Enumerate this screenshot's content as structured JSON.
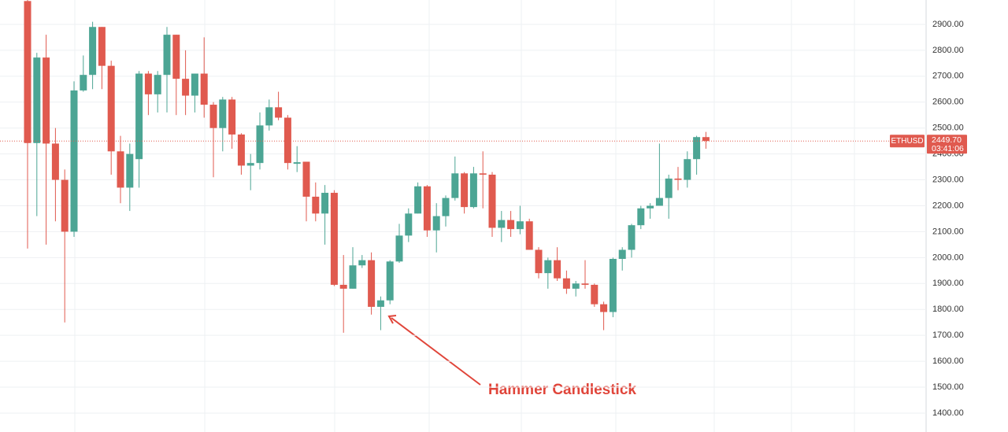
{
  "chart_data": {
    "type": "candlestick",
    "symbol": "ETHUSD",
    "up_color": "#4ca594",
    "down_color": "#e05a4f",
    "ylim": [
      1327,
      2994
    ],
    "yticks": [
      {
        "value": 1400,
        "label": "1400.00"
      },
      {
        "value": 1500,
        "label": "1500.00"
      },
      {
        "value": 1600,
        "label": "1600.00"
      },
      {
        "value": 1700,
        "label": "1700.00"
      },
      {
        "value": 1800,
        "label": "1800.00"
      },
      {
        "value": 1900,
        "label": "1900.00"
      },
      {
        "value": 2000,
        "label": "2000.00"
      },
      {
        "value": 2100,
        "label": "2100.00"
      },
      {
        "value": 2200,
        "label": "2200.00"
      },
      {
        "value": 2300,
        "label": "2300.00"
      },
      {
        "value": 2400,
        "label": "2400.00"
      },
      {
        "value": 2500,
        "label": "2500.00"
      },
      {
        "value": 2600,
        "label": "2600.00"
      },
      {
        "value": 2700,
        "label": "2700.00"
      },
      {
        "value": 2800,
        "label": "2800.00"
      },
      {
        "value": 2900,
        "label": "2900.00"
      }
    ],
    "grid": true,
    "open": [
      2990,
      2442,
      2772,
      2440,
      2300,
      2100,
      2645,
      2705,
      2890,
      2740,
      2410,
      2270,
      2380,
      2710,
      2630,
      2705,
      2860,
      2690,
      2625,
      2710,
      2590,
      2500,
      2610,
      2475,
      2355,
      2365,
      2510,
      2580,
      2540,
      2362,
      2370,
      2235,
      2170,
      2250,
      1895,
      1880,
      1970,
      1990,
      1810,
      1835,
      1985,
      2085,
      2170,
      2275,
      2105,
      2160,
      2230,
      2325,
      2195,
      2325,
      2320,
      2115,
      2145,
      2110,
      2140,
      2030,
      1940,
      1990,
      1920,
      1880,
      1900,
      1895,
      1820,
      1790,
      1995,
      2030,
      2125,
      2190,
      2200,
      2230,
      2305,
      2300,
      2380,
      2465
    ],
    "high": [
      2994,
      2790,
      2860,
      2500,
      2340,
      2680,
      2780,
      2910,
      2890,
      2760,
      2470,
      2440,
      2720,
      2720,
      2720,
      2890,
      2860,
      2800,
      2710,
      2850,
      2600,
      2620,
      2620,
      2480,
      2400,
      2560,
      2610,
      2640,
      2550,
      2430,
      2370,
      2290,
      2280,
      2260,
      2010,
      2040,
      2010,
      2020,
      1850,
      1990,
      2130,
      2190,
      2290,
      2280,
      2210,
      2240,
      2390,
      2330,
      2350,
      2410,
      2330,
      2180,
      2180,
      2200,
      2150,
      2040,
      2000,
      2040,
      1950,
      1910,
      1990,
      1900,
      1830,
      2000,
      2040,
      2130,
      2200,
      2210,
      2440,
      2320,
      2350,
      2410,
      2470,
      2485
    ],
    "low": [
      2035,
      2160,
      2050,
      2140,
      1750,
      2080,
      2640,
      2650,
      2650,
      2320,
      2210,
      2180,
      2270,
      2550,
      2560,
      2560,
      2550,
      2550,
      2560,
      2540,
      2310,
      2410,
      2420,
      2320,
      2260,
      2340,
      2490,
      2530,
      2340,
      2330,
      2140,
      2140,
      2050,
      1890,
      1710,
      1880,
      1960,
      1780,
      1720,
      1820,
      1980,
      2060,
      2170,
      2080,
      2020,
      2120,
      2220,
      2170,
      2190,
      2190,
      2080,
      2060,
      2080,
      2090,
      2030,
      1920,
      1880,
      1910,
      1860,
      1850,
      1880,
      1810,
      1720,
      1770,
      1950,
      2000,
      2110,
      2150,
      2200,
      2150,
      2260,
      2270,
      2320,
      2420
    ],
    "close": [
      2442,
      2772,
      2440,
      2300,
      2100,
      2645,
      2705,
      2890,
      2740,
      2410,
      2270,
      2400,
      2710,
      2630,
      2705,
      2860,
      2690,
      2625,
      2710,
      2590,
      2500,
      2610,
      2475,
      2355,
      2365,
      2510,
      2580,
      2540,
      2365,
      2368,
      2235,
      2170,
      2250,
      1895,
      1880,
      1970,
      1990,
      1810,
      1835,
      1985,
      2085,
      2170,
      2275,
      2105,
      2160,
      2230,
      2325,
      2195,
      2325,
      2320,
      2115,
      2145,
      2110,
      2140,
      2030,
      1940,
      1990,
      1920,
      1880,
      1900,
      1895,
      1820,
      1790,
      1995,
      2030,
      2125,
      2190,
      2200,
      2230,
      2305,
      2300,
      2380,
      2465,
      2450
    ],
    "last_price": {
      "value": 2449.7,
      "label": "2449.70"
    },
    "countdown": "03:41:06",
    "annotation": "Hammer Candlestick"
  }
}
